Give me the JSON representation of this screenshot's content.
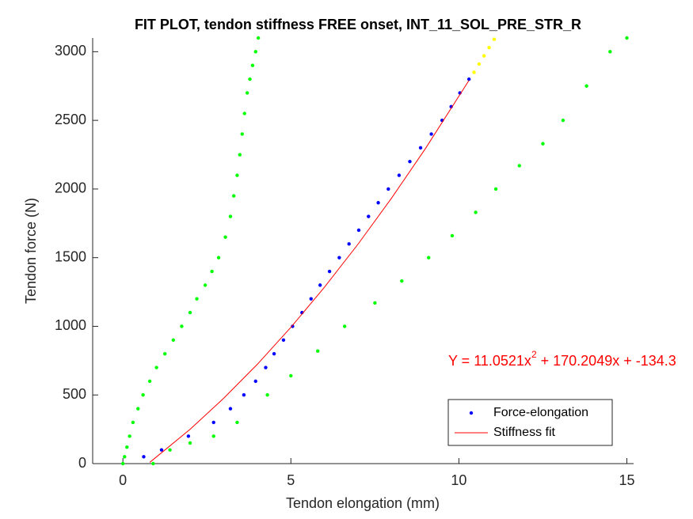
{
  "chart_data": {
    "type": "scatter",
    "title": "FIT PLOT, tendon stiffness FREE onset, INT_11_SOL_PRE_STR_R",
    "x_label": "Tendon elongation (mm)",
    "y_label": "Tendon force (N)",
    "annotation": {
      "text": "Y = 11.0521x",
      "superscript": "2",
      "rest": " + 170.2049x + -134.3"
    },
    "xlim": [
      -0.9,
      15.2
    ],
    "ylim": [
      0,
      3100
    ],
    "xticks": [
      0,
      5,
      10,
      15
    ],
    "yticks": [
      0,
      500,
      1000,
      1500,
      2000,
      2500,
      3000
    ],
    "series": [
      {
        "color": "#00ff00",
        "style": "dots",
        "x": [
          0,
          0.05,
          0.12,
          0.2,
          0.3,
          0.45,
          0.6,
          0.8,
          1.0,
          1.25,
          1.5,
          1.75,
          2.0,
          2.2,
          2.45,
          2.65,
          2.85,
          3.05,
          3.2,
          3.3,
          3.4,
          3.48,
          3.55,
          3.62,
          3.7,
          3.78,
          3.86,
          3.95,
          4.03
        ],
        "values": [
          0,
          50,
          120,
          200,
          300,
          400,
          500,
          600,
          700,
          800,
          900,
          1000,
          1100,
          1200,
          1300,
          1400,
          1500,
          1650,
          1800,
          1950,
          2100,
          2250,
          2400,
          2550,
          2700,
          2800,
          2900,
          3000,
          3100
        ]
      },
      {
        "color": "#00ff00",
        "style": "dots",
        "x": [
          0.9,
          1.4,
          2.0,
          2.7,
          3.4,
          4.3,
          5.0,
          5.8,
          6.6,
          7.5,
          8.3,
          9.1,
          9.8,
          10.5,
          11.1,
          11.8,
          12.5,
          13.1,
          13.8,
          14.5,
          15.0
        ],
        "values": [
          0,
          100,
          150,
          200,
          300,
          500,
          640,
          820,
          1000,
          1170,
          1330,
          1500,
          1660,
          1830,
          2000,
          2170,
          2330,
          2500,
          2750,
          3000,
          3100
        ]
      },
      {
        "color": "#ffff00",
        "style": "dots",
        "x": [
          10.45,
          10.6,
          10.75,
          10.9,
          11.05
        ],
        "values": [
          2850,
          2910,
          2970,
          3030,
          3090
        ]
      },
      {
        "name": "Force-elongation",
        "color": "#0000ff",
        "style": "dots",
        "x": [
          0.62,
          1.15,
          1.95,
          2.7,
          3.2,
          3.6,
          3.95,
          4.25,
          4.5,
          4.78,
          5.05,
          5.33,
          5.6,
          5.87,
          6.15,
          6.44,
          6.73,
          7.02,
          7.31,
          7.6,
          7.9,
          8.22,
          8.54,
          8.86,
          9.18,
          9.5,
          9.77,
          10.03,
          10.3
        ],
        "values": [
          50,
          100,
          200,
          300,
          400,
          500,
          600,
          700,
          800,
          900,
          1000,
          1100,
          1200,
          1300,
          1400,
          1500,
          1600,
          1700,
          1800,
          1900,
          2000,
          2100,
          2200,
          2300,
          2400,
          2500,
          2600,
          2700,
          2800
        ]
      },
      {
        "name": "Stiffness fit",
        "color": "#ff0000",
        "style": "line",
        "x": [
          0.8,
          2,
          3,
          4,
          5,
          6,
          7,
          8,
          9,
          10.3
        ],
        "values": [
          9,
          250,
          476,
          723,
          993,
          1285,
          1599,
          1935,
          2293,
          2791
        ]
      }
    ]
  }
}
